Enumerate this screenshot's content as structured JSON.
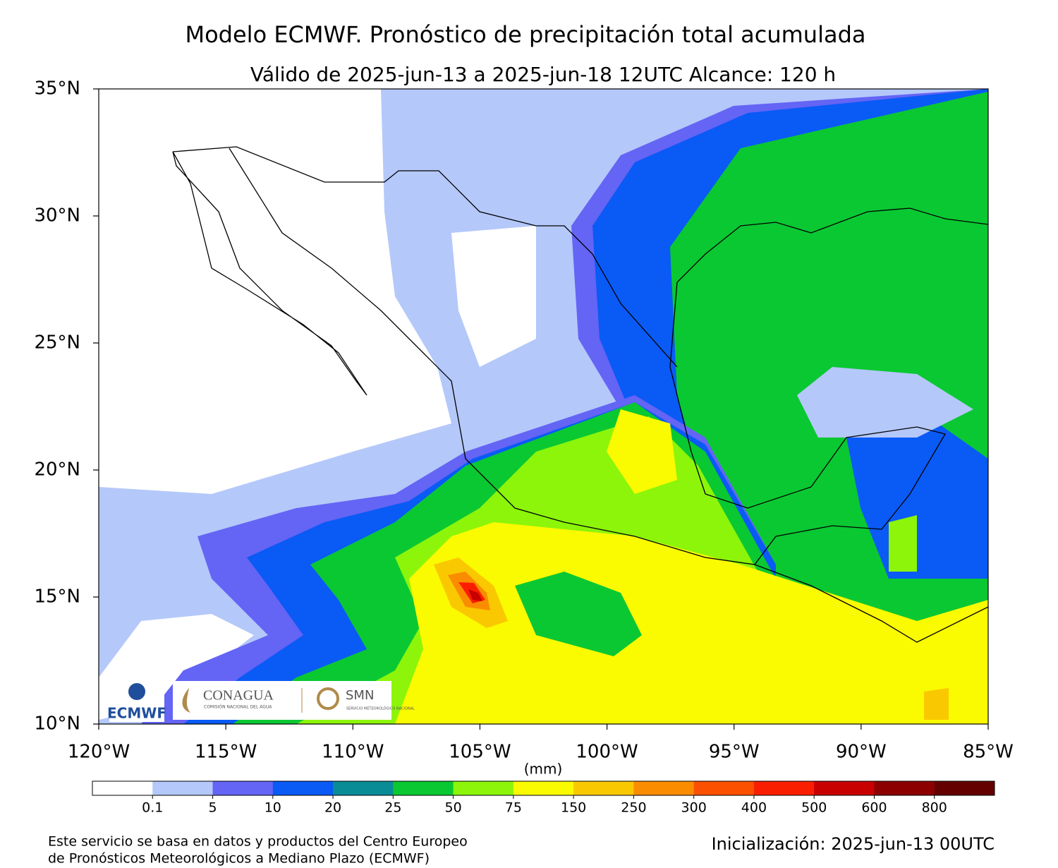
{
  "header": {
    "title": "Modelo ECMWF. Pronóstico de precipitación total acumulada",
    "subtitle": "Válido de 2025-jun-13 a 2025-jun-18 12UTC   Alcance: 120 h"
  },
  "map": {
    "xlim": [
      -120,
      -85
    ],
    "ylim": [
      10,
      35
    ],
    "xticks": [
      {
        "value": -120,
        "label": "120°W"
      },
      {
        "value": -115,
        "label": "115°W"
      },
      {
        "value": -110,
        "label": "110°W"
      },
      {
        "value": -105,
        "label": "105°W"
      },
      {
        "value": -100,
        "label": "100°W"
      },
      {
        "value": -95,
        "label": "95°W"
      },
      {
        "value": -90,
        "label": "90°W"
      },
      {
        "value": -85,
        "label": "85°W"
      }
    ],
    "yticks": [
      {
        "value": 10,
        "label": "10°N"
      },
      {
        "value": 15,
        "label": "15°N"
      },
      {
        "value": 20,
        "label": "20°N"
      },
      {
        "value": 25,
        "label": "25°N"
      },
      {
        "value": 30,
        "label": "30°N"
      },
      {
        "value": 35,
        "label": "35°N"
      }
    ]
  },
  "colorbar": {
    "label": "(mm)",
    "colors": [
      "#ffffff",
      "#b4c8fa",
      "#6464f5",
      "#0a5af5",
      "#0a8c96",
      "#0ac832",
      "#8cf50a",
      "#fafa00",
      "#fac800",
      "#fa8c00",
      "#fa5000",
      "#fa1e00",
      "#c80000",
      "#8c0000",
      "#640000"
    ],
    "ticks": [
      "0.1",
      "5",
      "10",
      "20",
      "25",
      "50",
      "75",
      "150",
      "250",
      "300",
      "400",
      "500",
      "600",
      "800"
    ]
  },
  "logos": {
    "ecmwf": "ECMWF",
    "conagua": "CONAGUA",
    "conagua_sub": "COMISIÓN NACIONAL DEL AGUA",
    "smn": "SMN",
    "smn_sub": "SERVICIO METEOROLÓGICO NACIONAL"
  },
  "footer": {
    "credit_1": "Este servicio se basa en datos y productos del Centro Europeo",
    "credit_2": "de Pronósticos Meteorológicos a Mediano Plazo (ECMWF)",
    "init": "Inicialización: 2025-jun-13 00UTC"
  }
}
